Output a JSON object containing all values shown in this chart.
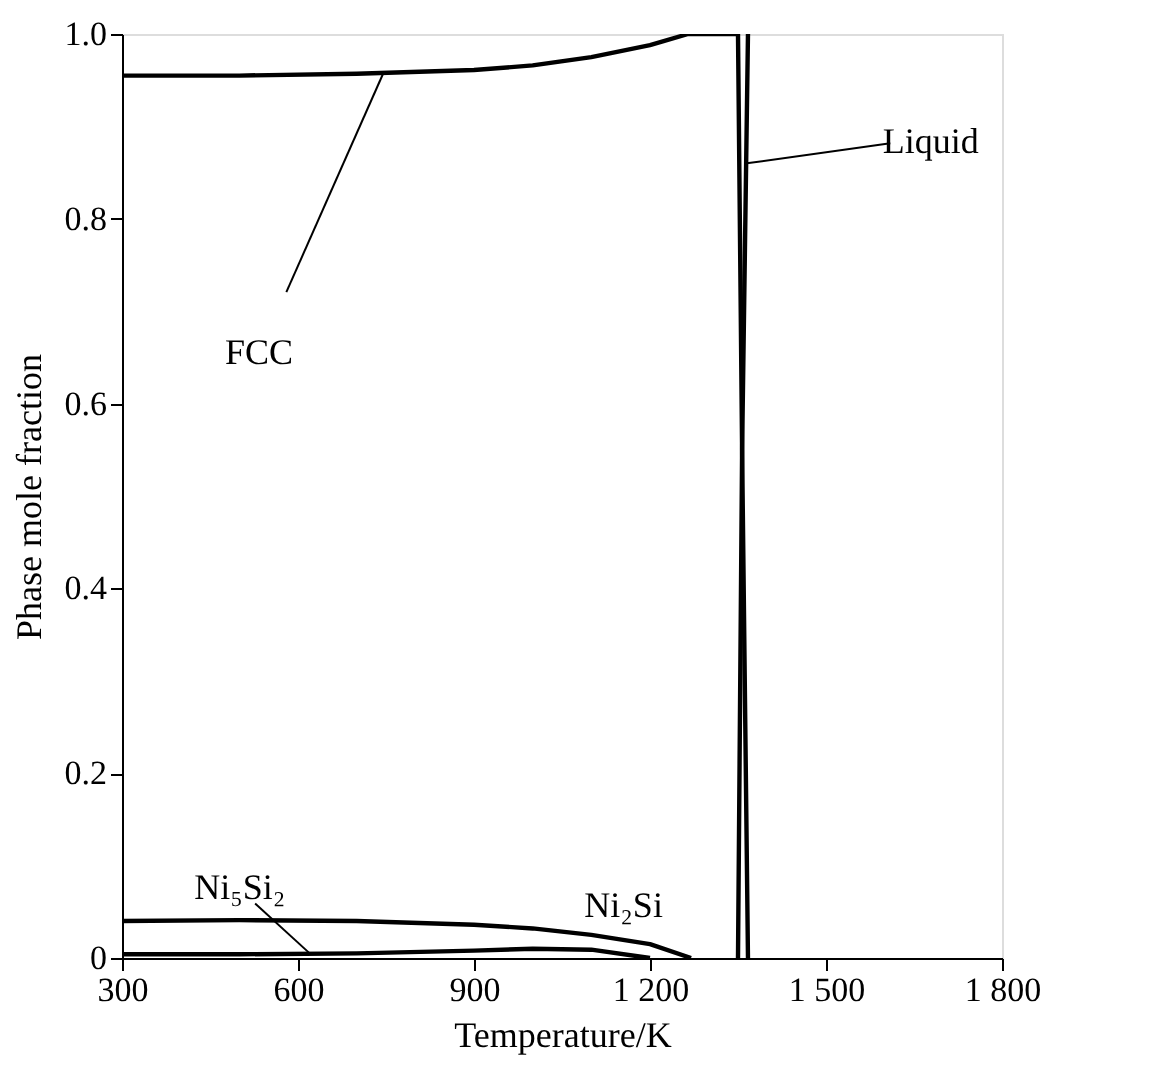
{
  "chart_data": {
    "type": "line",
    "xlabel": "Temperature/K",
    "ylabel": "Phase mole fraction",
    "xlim": [
      300,
      1800
    ],
    "xticks": [
      300,
      600,
      900,
      {
        "value": 1200,
        "label": "1 200"
      },
      {
        "value": 1500,
        "label": "1 500"
      },
      {
        "value": 1800,
        "label": "1 800"
      }
    ],
    "ylim": [
      0,
      1.0
    ],
    "yticks": [
      {
        "value": 0,
        "label": "0"
      },
      0.2,
      0.4,
      0.6,
      0.8,
      {
        "value": 1.0,
        "label": "1.0"
      }
    ],
    "grid": false,
    "marker": "none",
    "line_style": "solid",
    "series": [
      {
        "color": "#000000",
        "x": [
          300,
          500,
          700,
          900,
          1000,
          1100,
          1200,
          1265,
          1350,
          1357,
          1367
        ],
        "values": [
          0.955,
          0.955,
          0.957,
          0.961,
          0.966,
          0.975,
          0.988,
          1.0,
          1.0,
          0.55,
          0
        ]
      },
      {
        "color": "#000000",
        "x": [
          1350,
          1357,
          1367
        ],
        "values": [
          0,
          0.55,
          1.0
        ]
      },
      {
        "color": "#000000",
        "x": [
          300,
          500,
          700,
          900,
          1000,
          1100,
          1200,
          1270
        ],
        "values": [
          0.04,
          0.041,
          0.04,
          0.036,
          0.032,
          0.025,
          0.015,
          0
        ]
      },
      {
        "color": "#000000",
        "x": [
          300,
          500,
          700,
          900,
          1000,
          1100,
          1200
        ],
        "values": [
          0.004,
          0.004,
          0.005,
          0.008,
          0.01,
          0.009,
          0
        ]
      }
    ],
    "annotations": [
      {
        "text": "FCC",
        "x": 745,
        "y": 0.957
      },
      {
        "text": "Liquid",
        "x": 1365,
        "y": 0.86
      },
      {
        "text": "Ni₅Si₂",
        "x": 620,
        "y": 0.005
      },
      "Ni₂Si"
    ]
  }
}
